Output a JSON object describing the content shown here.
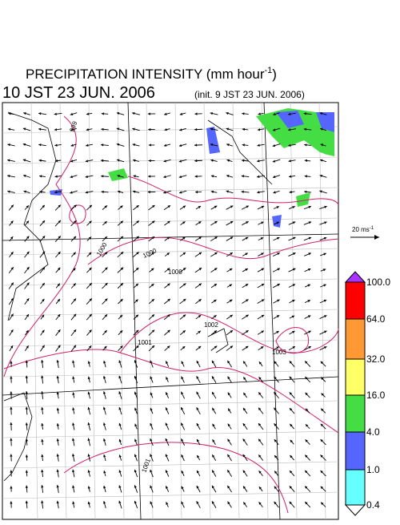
{
  "header": {
    "title": "PRECIPITATION INTENSITY (mm hour",
    "title_exponent": "-1",
    "title_close": ")",
    "valid_time": "10 JST 23 JUN. 2006",
    "init_time": "(init. 9 JST 23 JUN. 2006)"
  },
  "wind_scale": {
    "label": "20 ms",
    "exponent": "-1"
  },
  "colorbar": {
    "levels": [
      "100.0",
      "64.0",
      "32.0",
      "16.0",
      "4.0",
      "1.0",
      "0.4"
    ],
    "colors": [
      "#ff0000",
      "#ff9933",
      "#ffff66",
      "#44dd44",
      "#5566ff",
      "#66ffff"
    ],
    "over_color": "#aa33ff",
    "under_color": "#ffffff"
  },
  "contours": {
    "labels": [
      "999",
      "1000",
      "1000",
      "1001",
      "1002",
      "1003",
      "1001",
      "1000"
    ]
  }
}
